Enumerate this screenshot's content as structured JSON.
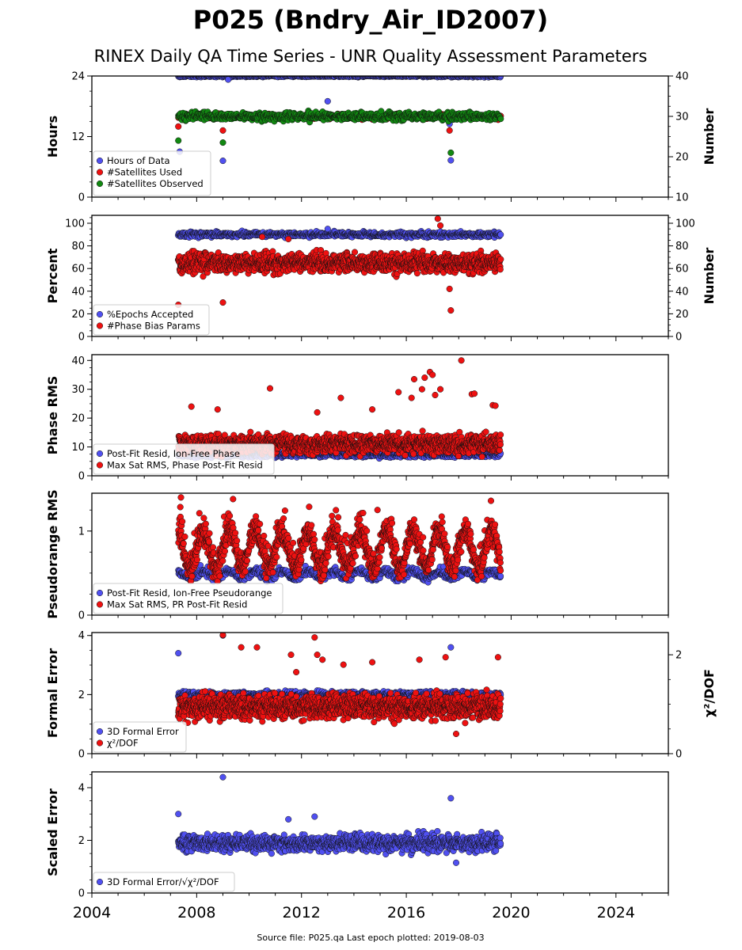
{
  "figure": {
    "title": "P025 (Bndry_Air_ID2007)",
    "subtitle": "RINEX Daily QA Time Series - UNR Quality Assessment Parameters",
    "source_note": "Source file: P025.qa Last epoch plotted: 2019-08-03",
    "x_range": [
      2004,
      2026
    ],
    "x_ticks": [
      "2004",
      "2008",
      "2012",
      "2016",
      "2020",
      "2024"
    ],
    "colors": {
      "blue": "#5050f0",
      "red": "#ee1111",
      "green": "#118811"
    }
  },
  "chart_data": [
    {
      "type": "scatter",
      "ylabel": "Hours",
      "ylim": [
        0,
        24
      ],
      "yticks": [
        "0",
        "12",
        "24"
      ],
      "right_axis": {
        "label": "Number",
        "ylim": [
          10,
          40
        ],
        "ticks": [
          "10",
          "20",
          "30",
          "40"
        ]
      },
      "legend": [
        "Hours of Data",
        "#Satellites Used",
        "#Satellites Observed"
      ],
      "legend_position": "lower-left",
      "series": [
        {
          "name": "Hours of Data",
          "color": "blue",
          "axis": "left",
          "kind": "band",
          "x_range": [
            2007.3,
            2019.6
          ],
          "center": 24,
          "spread": 0.15,
          "density": 700,
          "outliers": [
            [
              2007.35,
              9
            ],
            [
              2009.0,
              7.2
            ],
            [
              2009.2,
              23.3
            ],
            [
              2013.0,
              19
            ],
            [
              2017.65,
              14.5
            ],
            [
              2017.7,
              7.3
            ]
          ]
        },
        {
          "name": "#Satellites Used",
          "color": "red",
          "axis": "right",
          "kind": "band",
          "x_range": [
            2007.3,
            2019.6
          ],
          "center": 30.0,
          "spread": 0.5,
          "density": 250,
          "outliers": [
            [
              2007.3,
              27.5
            ],
            [
              2009.0,
              26.5
            ],
            [
              2009.8,
              30.0
            ],
            [
              2017.65,
              26.5
            ]
          ]
        },
        {
          "name": "#Satellites Observed",
          "color": "green",
          "axis": "right",
          "kind": "band",
          "x_range": [
            2007.3,
            2019.6
          ],
          "center": 30.0,
          "spread": 0.7,
          "density": 700,
          "outliers": [
            [
              2007.3,
              24.0
            ],
            [
              2009.0,
              23.5
            ],
            [
              2017.7,
              21.0
            ]
          ]
        }
      ]
    },
    {
      "type": "scatter",
      "ylabel": "Percent",
      "ylim": [
        0,
        107
      ],
      "yticks": [
        "0",
        "20",
        "40",
        "60",
        "80",
        "100"
      ],
      "right_axis": {
        "label": "Number",
        "ylim": [
          0,
          107
        ],
        "ticks": [
          "0",
          "20",
          "40",
          "60",
          "80",
          "100"
        ]
      },
      "legend": [
        "%Epochs Accepted",
        "#Phase Bias Params"
      ],
      "legend_position": "lower-left",
      "series": [
        {
          "name": "%Epochs Accepted",
          "color": "blue",
          "axis": "left",
          "kind": "band",
          "x_range": [
            2007.3,
            2019.6
          ],
          "center": 90,
          "spread": 1.6,
          "density": 800,
          "outliers": [
            [
              2013.0,
              95
            ]
          ]
        },
        {
          "name": "#Phase Bias Params",
          "color": "red",
          "axis": "right",
          "kind": "band",
          "x_range": [
            2007.3,
            2019.6
          ],
          "center": 65,
          "spread": 6,
          "density": 1300,
          "outliers": [
            [
              2007.3,
              28
            ],
            [
              2009.0,
              30
            ],
            [
              2017.2,
              104
            ],
            [
              2017.3,
              98
            ],
            [
              2017.65,
              42
            ],
            [
              2017.7,
              23
            ],
            [
              2010.5,
              88
            ],
            [
              2011.5,
              86
            ]
          ]
        }
      ]
    },
    {
      "type": "scatter",
      "ylabel": "Phase RMS",
      "ylim": [
        0,
        42
      ],
      "yticks": [
        "0",
        "10",
        "20",
        "30",
        "40"
      ],
      "legend": [
        "Post-Fit Resid, Ion-Free Phase",
        "Max Sat RMS, Phase Post-Fit Resid"
      ],
      "legend_position": "lower-left",
      "series": [
        {
          "name": "Post-Fit Resid, Ion-Free Phase",
          "color": "blue",
          "axis": "left",
          "kind": "band",
          "x_range": [
            2007.3,
            2019.6
          ],
          "center": 7.3,
          "spread": 0.6,
          "density": 800,
          "outliers": []
        },
        {
          "name": "Max Sat RMS, Phase Post-Fit Resid",
          "color": "red",
          "axis": "left",
          "kind": "band",
          "x_range": [
            2007.3,
            2019.6
          ],
          "center": 11,
          "spread": 2.3,
          "density": 1400,
          "outliers": [
            [
              2007.8,
              24
            ],
            [
              2008.8,
              23
            ],
            [
              2010.8,
              30.3
            ],
            [
              2013.5,
              27
            ],
            [
              2015.7,
              29
            ],
            [
              2016.2,
              27
            ],
            [
              2016.3,
              33.5
            ],
            [
              2016.6,
              30
            ],
            [
              2016.7,
              34
            ],
            [
              2016.9,
              36
            ],
            [
              2017.0,
              35
            ],
            [
              2017.1,
              28
            ],
            [
              2017.3,
              30
            ],
            [
              2018.1,
              40
            ],
            [
              2018.5,
              28.3
            ],
            [
              2018.6,
              28.5
            ],
            [
              2019.3,
              24.5
            ],
            [
              2019.4,
              24.3
            ],
            [
              2012.6,
              22
            ],
            [
              2014.7,
              23
            ]
          ]
        }
      ]
    },
    {
      "type": "scatter",
      "ylabel": "Pseudorange RMS",
      "ylim": [
        0,
        1.45
      ],
      "yticks": [
        "0",
        "1"
      ],
      "legend": [
        "Post-Fit Resid, Ion-Free Pseudorange",
        "Max Sat RMS, PR Post-Fit Resid"
      ],
      "legend_position": "lower-left",
      "series": [
        {
          "name": "Post-Fit Resid, Ion-Free Pseudorange",
          "color": "blue",
          "axis": "left",
          "kind": "seasonal",
          "x_range": [
            2007.3,
            2019.6
          ],
          "center": 0.48,
          "amplitude": 0.04,
          "spread": 0.03,
          "density": 800,
          "outliers": []
        },
        {
          "name": "Max Sat RMS, PR Post-Fit Resid",
          "color": "red",
          "axis": "left",
          "kind": "seasonal",
          "x_range": [
            2007.3,
            2019.6
          ],
          "center": 0.78,
          "amplitude": 0.22,
          "spread": 0.1,
          "density": 1500,
          "outliers": [
            [
              2007.4,
              1.4
            ],
            [
              2014.9,
              1.25
            ]
          ]
        }
      ]
    },
    {
      "type": "scatter",
      "ylabel": "Formal Error",
      "ylim": [
        0,
        4.1
      ],
      "yticks": [
        "0",
        "2",
        "4"
      ],
      "right_axis": {
        "label": "χ²/DOF",
        "ylim": [
          0,
          2.45
        ],
        "ticks": [
          "0",
          "2"
        ]
      },
      "legend": [
        "3D Formal Error",
        "χ²/DOF"
      ],
      "legend_position": "lower-left",
      "series": [
        {
          "name": "3D Formal Error",
          "color": "blue",
          "axis": "left",
          "kind": "band",
          "x_range": [
            2007.3,
            2019.6
          ],
          "center": 2.0,
          "spread": 0.07,
          "density": 800,
          "outliers": [
            [
              2007.3,
              3.4
            ],
            [
              2009.0,
              4.0
            ],
            [
              2017.7,
              3.6
            ]
          ]
        },
        {
          "name": "χ²/DOF",
          "color": "red",
          "axis": "right",
          "kind": "band",
          "x_range": [
            2007.3,
            2019.6
          ],
          "center": 0.95,
          "spread": 0.17,
          "density": 1500,
          "outliers": [
            [
              2009.0,
              2.4
            ],
            [
              2009.7,
              2.15
            ],
            [
              2010.3,
              2.15
            ],
            [
              2011.6,
              2.0
            ],
            [
              2012.5,
              2.35
            ],
            [
              2012.6,
              2.0
            ],
            [
              2012.8,
              1.9
            ],
            [
              2013.6,
              1.8
            ],
            [
              2014.7,
              1.85
            ],
            [
              2016.5,
              1.9
            ],
            [
              2017.5,
              1.95
            ],
            [
              2019.5,
              1.95
            ],
            [
              2017.9,
              0.4
            ],
            [
              2011.8,
              1.65
            ]
          ]
        }
      ]
    },
    {
      "type": "scatter",
      "ylabel": "Scaled Error",
      "ylim": [
        0,
        4.6
      ],
      "yticks": [
        "0",
        "2",
        "4"
      ],
      "legend": [
        "3D Formal Error/√χ²/DOF"
      ],
      "legend_position": "lower-left",
      "series": [
        {
          "name": "3D Formal Error/√χ²/DOF",
          "color": "blue",
          "axis": "left",
          "kind": "band",
          "x_range": [
            2007.3,
            2019.6
          ],
          "center": 1.9,
          "spread": 0.22,
          "density": 1300,
          "outliers": [
            [
              2007.3,
              3.0
            ],
            [
              2009.0,
              4.4
            ],
            [
              2017.7,
              3.6
            ],
            [
              2012.5,
              2.9
            ],
            [
              2011.5,
              2.8
            ],
            [
              2017.9,
              1.15
            ]
          ]
        }
      ]
    }
  ]
}
